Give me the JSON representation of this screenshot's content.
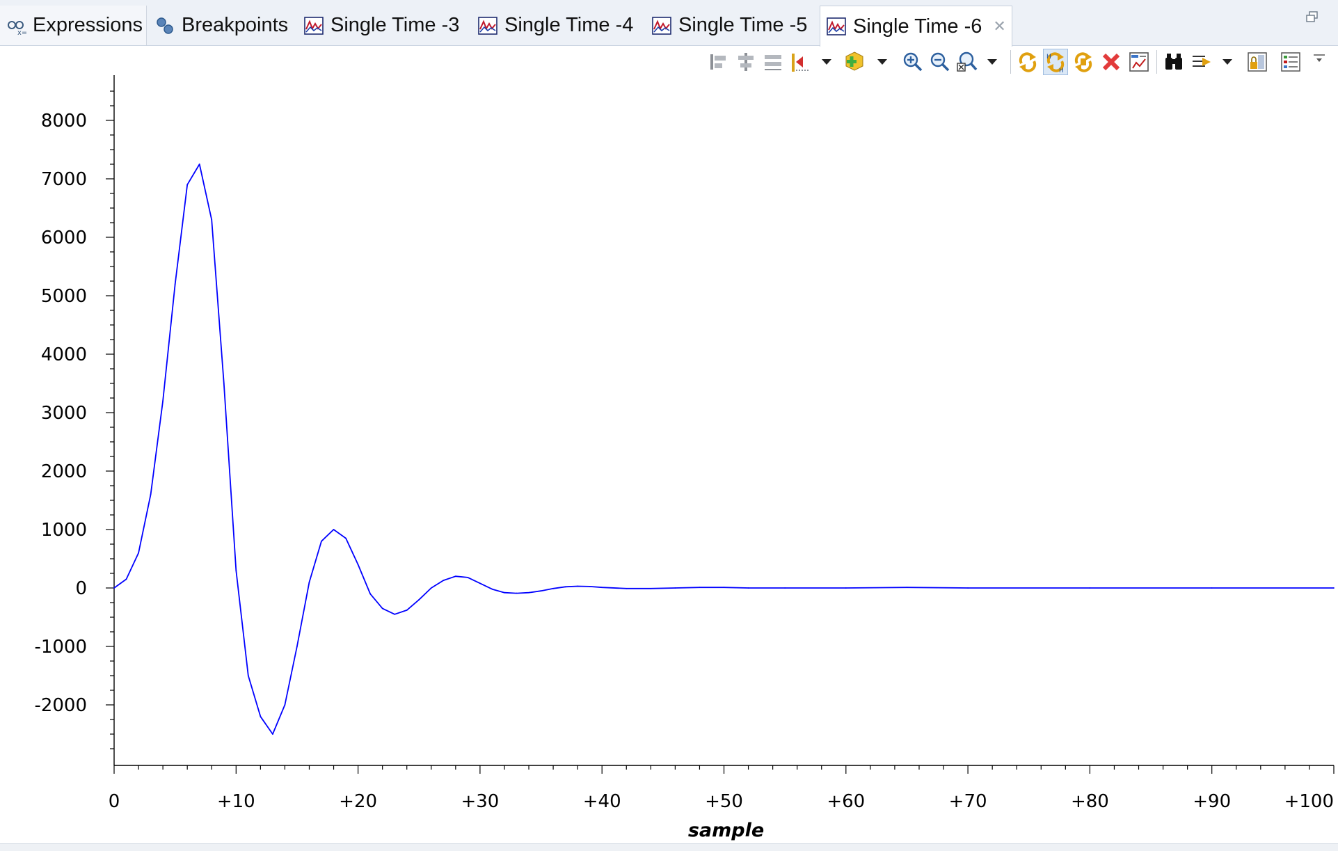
{
  "tabs": [
    {
      "label": "Expressions",
      "icon": "expressions-icon",
      "active": false
    },
    {
      "label": "Breakpoints",
      "icon": "breakpoints-icon",
      "active": false
    },
    {
      "label": "Single Time -3",
      "icon": "graph-icon",
      "active": false
    },
    {
      "label": "Single Time -4",
      "icon": "graph-icon",
      "active": false
    },
    {
      "label": "Single Time -5",
      "icon": "graph-icon",
      "active": false
    },
    {
      "label": "Single Time -6",
      "icon": "graph-icon",
      "active": true,
      "closable": true
    }
  ],
  "toolbar": {
    "buttons": [
      "align-left-icon",
      "align-center-icon",
      "align-distribute-icon",
      "reset-marker-icon",
      "dropdown-arrow-icon",
      "add-measurement-icon",
      "dropdown-arrow-icon",
      "zoom-in-icon",
      "zoom-out-icon",
      "zoom-fit-icon",
      "dropdown-arrow-icon",
      "refresh-icon",
      "refresh-hold-icon",
      "continuous-refresh-icon",
      "remove-icon",
      "display-properties-icon",
      "find-icon",
      "export-icon",
      "dropdown-arrow-icon",
      "lock-scale-icon",
      "show-legend-icon",
      "view-menu-icon"
    ]
  },
  "chart_data": {
    "type": "line",
    "title": "",
    "xlabel": "sample",
    "ylabel": "",
    "xlim": [
      0,
      100
    ],
    "ylim": [
      -3000,
      8800
    ],
    "xticks": [
      0,
      10,
      20,
      30,
      40,
      50,
      60,
      70,
      80,
      90,
      100
    ],
    "xtick_labels": [
      "0",
      "+10",
      "+20",
      "+30",
      "+40",
      "+50",
      "+60",
      "+70",
      "+80",
      "+90",
      "+100"
    ],
    "yticks": [
      8000,
      7000,
      6000,
      5000,
      4000,
      3000,
      2000,
      1000,
      0,
      -1000,
      -2000
    ],
    "ytick_labels": [
      "8000",
      "7000",
      "6000",
      "5000",
      "4000",
      "3000",
      "2000",
      "1000",
      "0",
      "-1000",
      "-2000"
    ],
    "grid": false,
    "legend": false,
    "series": [
      {
        "color": "#0000ff",
        "x": [
          0,
          1,
          2,
          3,
          4,
          5,
          6,
          7,
          8,
          9,
          10,
          11,
          12,
          13,
          14,
          15,
          16,
          17,
          18,
          19,
          20,
          21,
          22,
          23,
          24,
          25,
          26,
          27,
          28,
          29,
          30,
          31,
          32,
          33,
          34,
          35,
          36,
          37,
          38,
          39,
          40,
          42,
          44,
          46,
          48,
          50,
          52,
          55,
          60,
          65,
          70,
          80,
          90,
          100
        ],
        "values": [
          0,
          150,
          600,
          1600,
          3200,
          5200,
          6900,
          7250,
          6300,
          3500,
          300,
          -1500,
          -2200,
          -2500,
          -2000,
          -1000,
          100,
          800,
          1000,
          850,
          400,
          -100,
          -350,
          -450,
          -380,
          -200,
          0,
          130,
          200,
          180,
          80,
          -20,
          -80,
          -90,
          -80,
          -50,
          -10,
          20,
          30,
          25,
          10,
          -10,
          -10,
          0,
          10,
          10,
          0,
          0,
          0,
          10,
          0,
          0,
          0,
          0
        ]
      }
    ]
  }
}
